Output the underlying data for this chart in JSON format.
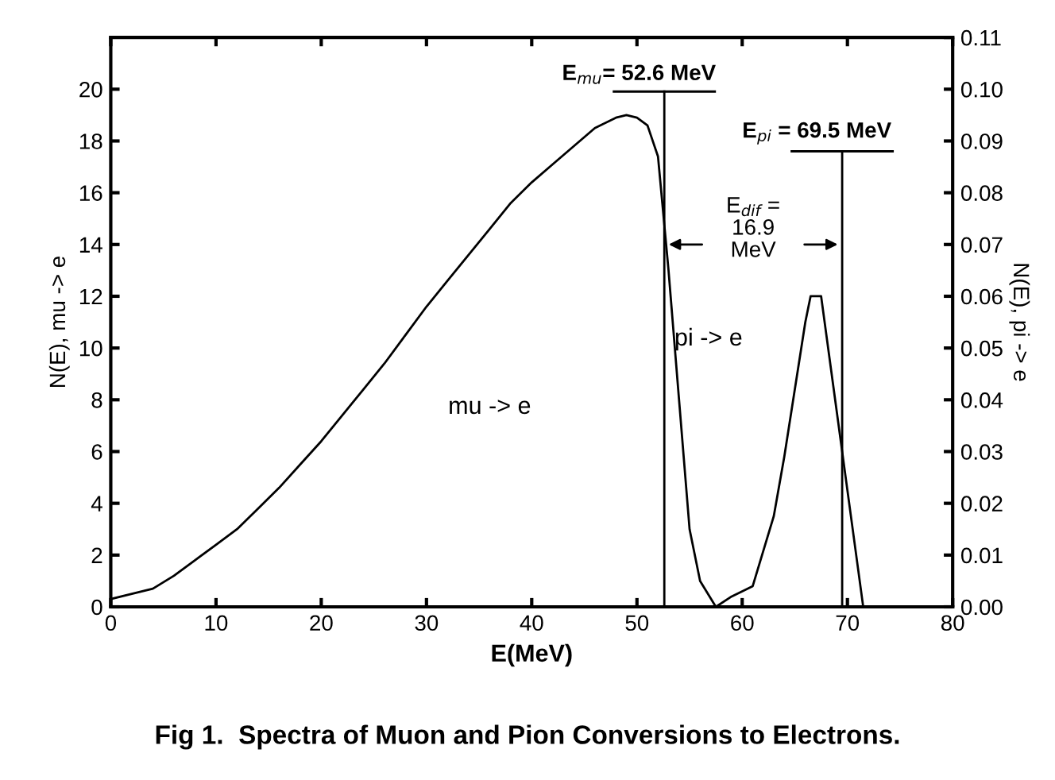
{
  "chart_data": {
    "type": "line",
    "title": "Fig 1.  Spectra of Muon and Pion Conversions to Electrons.",
    "xlabel": "E(MeV)",
    "ylabel": "N(E), mu -> e",
    "y2label": "N(E), pi -> e",
    "xlim": [
      0,
      80
    ],
    "xticks": [
      0,
      10,
      20,
      30,
      40,
      50,
      60,
      70,
      80
    ],
    "ylim": [
      0,
      22
    ],
    "yticks": [
      0,
      2,
      4,
      6,
      8,
      10,
      12,
      14,
      16,
      18,
      20
    ],
    "y2lim": [
      0,
      0.11
    ],
    "y2ticks": [
      {
        "value": 0,
        "label": "0.00"
      },
      {
        "value": 0.01,
        "label": "0.01"
      },
      {
        "value": 0.02,
        "label": "0.02"
      },
      {
        "value": 0.03,
        "label": "0.03"
      },
      {
        "value": 0.04,
        "label": "0.04"
      },
      {
        "value": 0.05,
        "label": "0.05"
      },
      {
        "value": 0.06,
        "label": "0.06"
      },
      {
        "value": 0.07,
        "label": "0.07"
      },
      {
        "value": 0.08,
        "label": "0.08"
      },
      {
        "value": 0.09,
        "label": "0.09"
      },
      {
        "value": 0.1,
        "label": "0.10"
      },
      {
        "value": 0.11,
        "label": "0.11"
      }
    ],
    "series": [
      {
        "color": "#000000",
        "x": [
          0,
          2,
          4,
          6,
          8,
          10,
          12,
          14,
          16,
          18,
          20,
          22,
          24,
          26,
          28,
          30,
          32,
          34,
          36,
          38,
          40,
          42,
          44,
          46,
          48,
          49,
          50,
          51,
          52,
          53,
          54,
          55,
          56,
          57.5
        ],
        "values": [
          0.3,
          0.5,
          0.7,
          1.2,
          1.8,
          2.4,
          3.0,
          3.8,
          4.6,
          5.5,
          6.4,
          7.4,
          8.4,
          9.4,
          10.5,
          11.6,
          12.6,
          13.6,
          14.6,
          15.6,
          16.4,
          17.1,
          17.8,
          18.5,
          18.9,
          19.0,
          18.9,
          18.6,
          17.4,
          13,
          8,
          3,
          1,
          0
        ]
      },
      {
        "color": "#000000",
        "axis": "y2",
        "x": [
          57.5,
          59,
          61,
          63,
          64,
          66,
          66.5,
          67.5,
          68,
          70,
          71,
          71.5
        ],
        "values": [
          0,
          0.002,
          0.004,
          0.0175,
          0.029,
          0.055,
          0.06,
          0.06,
          0.0525,
          0.0225,
          0.0075,
          0
        ]
      }
    ],
    "ref_lines": [
      {
        "axis": "x",
        "value": 52.6,
        "label": "E$_{mu}$= 52.6 MeV",
        "color": "#000000"
      },
      {
        "axis": "x",
        "value": 69.5,
        "label": "E$_{pi}$ = 69.5 MeV",
        "color": "#000000"
      }
    ],
    "annotations": [
      "E$_{dif}$ =\n16.9\nMeV",
      "mu -> e",
      "pi -> e"
    ],
    "grid": false,
    "line_style": "solid",
    "marker": "none"
  }
}
